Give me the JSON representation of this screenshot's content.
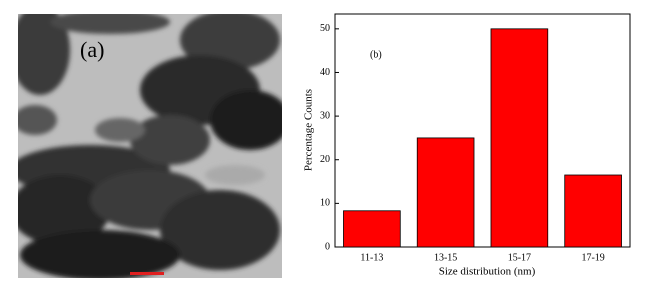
{
  "image_panel": {
    "label": "(a)"
  },
  "chart_data": {
    "type": "bar",
    "annotation": "(b)",
    "x_label": "Size distribution (nm)",
    "y_label": "Percentage Counts",
    "categories": [
      "11-13",
      "13-15",
      "15-17",
      "17-19"
    ],
    "values": [
      8.3,
      25,
      50,
      16.5
    ],
    "color": "#ff0000",
    "ylim": [
      0,
      53.4
    ],
    "yticks": [
      0,
      10,
      20,
      30,
      40,
      50
    ]
  }
}
